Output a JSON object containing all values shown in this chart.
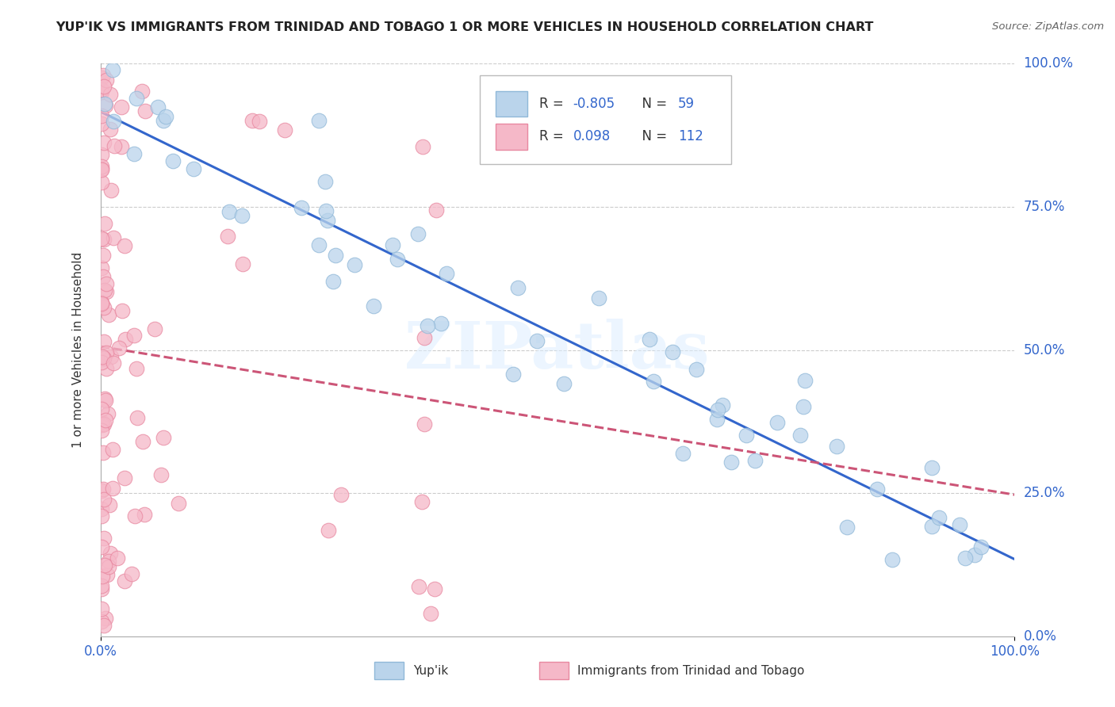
{
  "title": "YUP'IK VS IMMIGRANTS FROM TRINIDAD AND TOBAGO 1 OR MORE VEHICLES IN HOUSEHOLD CORRELATION CHART",
  "source": "Source: ZipAtlas.com",
  "ylabel": "1 or more Vehicles in Household",
  "legend_labels": [
    "Yup'ik",
    "Immigrants from Trinidad and Tobago"
  ],
  "r_blue": -0.805,
  "n_blue": 59,
  "r_pink": 0.098,
  "n_pink": 112,
  "blue_color": "#bad4eb",
  "pink_color": "#f5b8c8",
  "blue_edge": "#90b8d8",
  "pink_edge": "#e888a0",
  "trend_blue": "#3366cc",
  "trend_pink": "#cc5577",
  "watermark": "ZIPatlas",
  "xlim": [
    0.0,
    1.0
  ],
  "ylim": [
    0.0,
    1.0
  ],
  "yticks": [
    0.0,
    0.25,
    0.5,
    0.75,
    1.0
  ],
  "ytick_labels": [
    "0.0%",
    "25.0%",
    "50.0%",
    "75.0%",
    "100.0%"
  ],
  "xtick_labels": [
    "0.0%",
    "100.0%"
  ],
  "legend_color": "#3366cc",
  "legend_r_color": "#3366cc",
  "legend_n_color": "#3366cc",
  "background": "#ffffff",
  "grid_color": "#cccccc",
  "title_color": "#222222",
  "label_color": "#3366cc"
}
